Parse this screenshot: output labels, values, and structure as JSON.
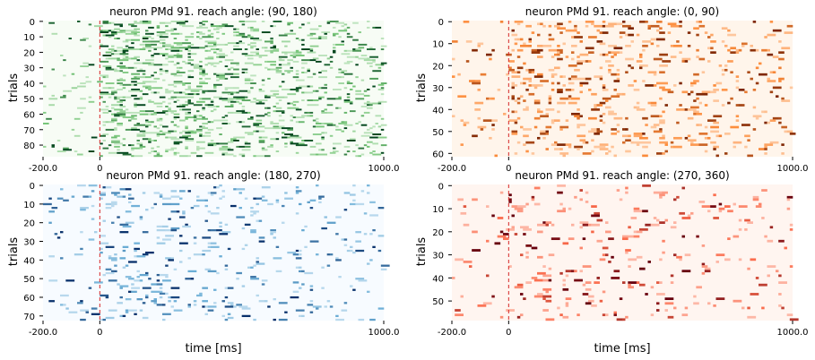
{
  "chart_data": [
    {
      "type": "heatmap",
      "title": "neuron PMd 91. reach angle: (90, 180)",
      "ylabel": "trials",
      "xlabel": "",
      "x_tick_labels": [
        "-200.0",
        "0",
        "1000.0"
      ],
      "x_range": [
        -200,
        1000
      ],
      "y_tick_labels": [
        "0",
        "10",
        "20",
        "30",
        "40",
        "50",
        "60",
        "70",
        "80"
      ],
      "n_trials": 88,
      "event_line_at": 0,
      "colormap": "Greens",
      "colors": {
        "low": "#f7fcf5",
        "mid": "#74c476",
        "high": "#00441b"
      },
      "activity": {
        "pre_event": 0.07,
        "post_event": 0.33,
        "peak_ms": 150
      }
    },
    {
      "type": "heatmap",
      "title": "neuron PMd 91. reach angle: (0, 90)",
      "ylabel": "trials",
      "xlabel": "",
      "x_tick_labels": [
        "-200.0",
        "0",
        "1000.0"
      ],
      "x_range": [
        -200,
        1000
      ],
      "y_tick_labels": [
        "0",
        "10",
        "20",
        "30",
        "40",
        "50",
        "60"
      ],
      "n_trials": 62,
      "event_line_at": 0,
      "colormap": "Oranges",
      "colors": {
        "low": "#fff5eb",
        "mid": "#fd8d3c",
        "high": "#7f2704"
      },
      "activity": {
        "pre_event": 0.06,
        "post_event": 0.22,
        "peak_ms": 200
      }
    },
    {
      "type": "heatmap",
      "title": "neuron PMd 91. reach angle: (180, 270)",
      "ylabel": "trials",
      "xlabel": "time [ms]",
      "x_tick_labels": [
        "-200.0",
        "0",
        "1000.0"
      ],
      "x_range": [
        -200,
        1000
      ],
      "y_tick_labels": [
        "0",
        "10",
        "20",
        "30",
        "40",
        "50",
        "60",
        "70"
      ],
      "n_trials": 73,
      "event_line_at": 0,
      "colormap": "Blues",
      "colors": {
        "low": "#f7fbff",
        "mid": "#6baed6",
        "high": "#08306b"
      },
      "activity": {
        "pre_event": 0.06,
        "post_event": 0.13,
        "peak_ms": 150
      }
    },
    {
      "type": "heatmap",
      "title": "neuron PMd 91. reach angle: (270, 360)",
      "ylabel": "trials",
      "xlabel": "time [ms]",
      "x_tick_labels": [
        "-200.0",
        "0",
        "1000.0"
      ],
      "x_range": [
        -200,
        1000
      ],
      "y_tick_labels": [
        "0",
        "10",
        "20",
        "30",
        "40",
        "50"
      ],
      "n_trials": 59,
      "event_line_at": 0,
      "colormap": "Reds",
      "colors": {
        "low": "#fff5f0",
        "mid": "#fb6a4a",
        "high": "#67000d"
      },
      "activity": {
        "pre_event": 0.05,
        "post_event": 0.12,
        "peak_ms": 200
      }
    }
  ]
}
